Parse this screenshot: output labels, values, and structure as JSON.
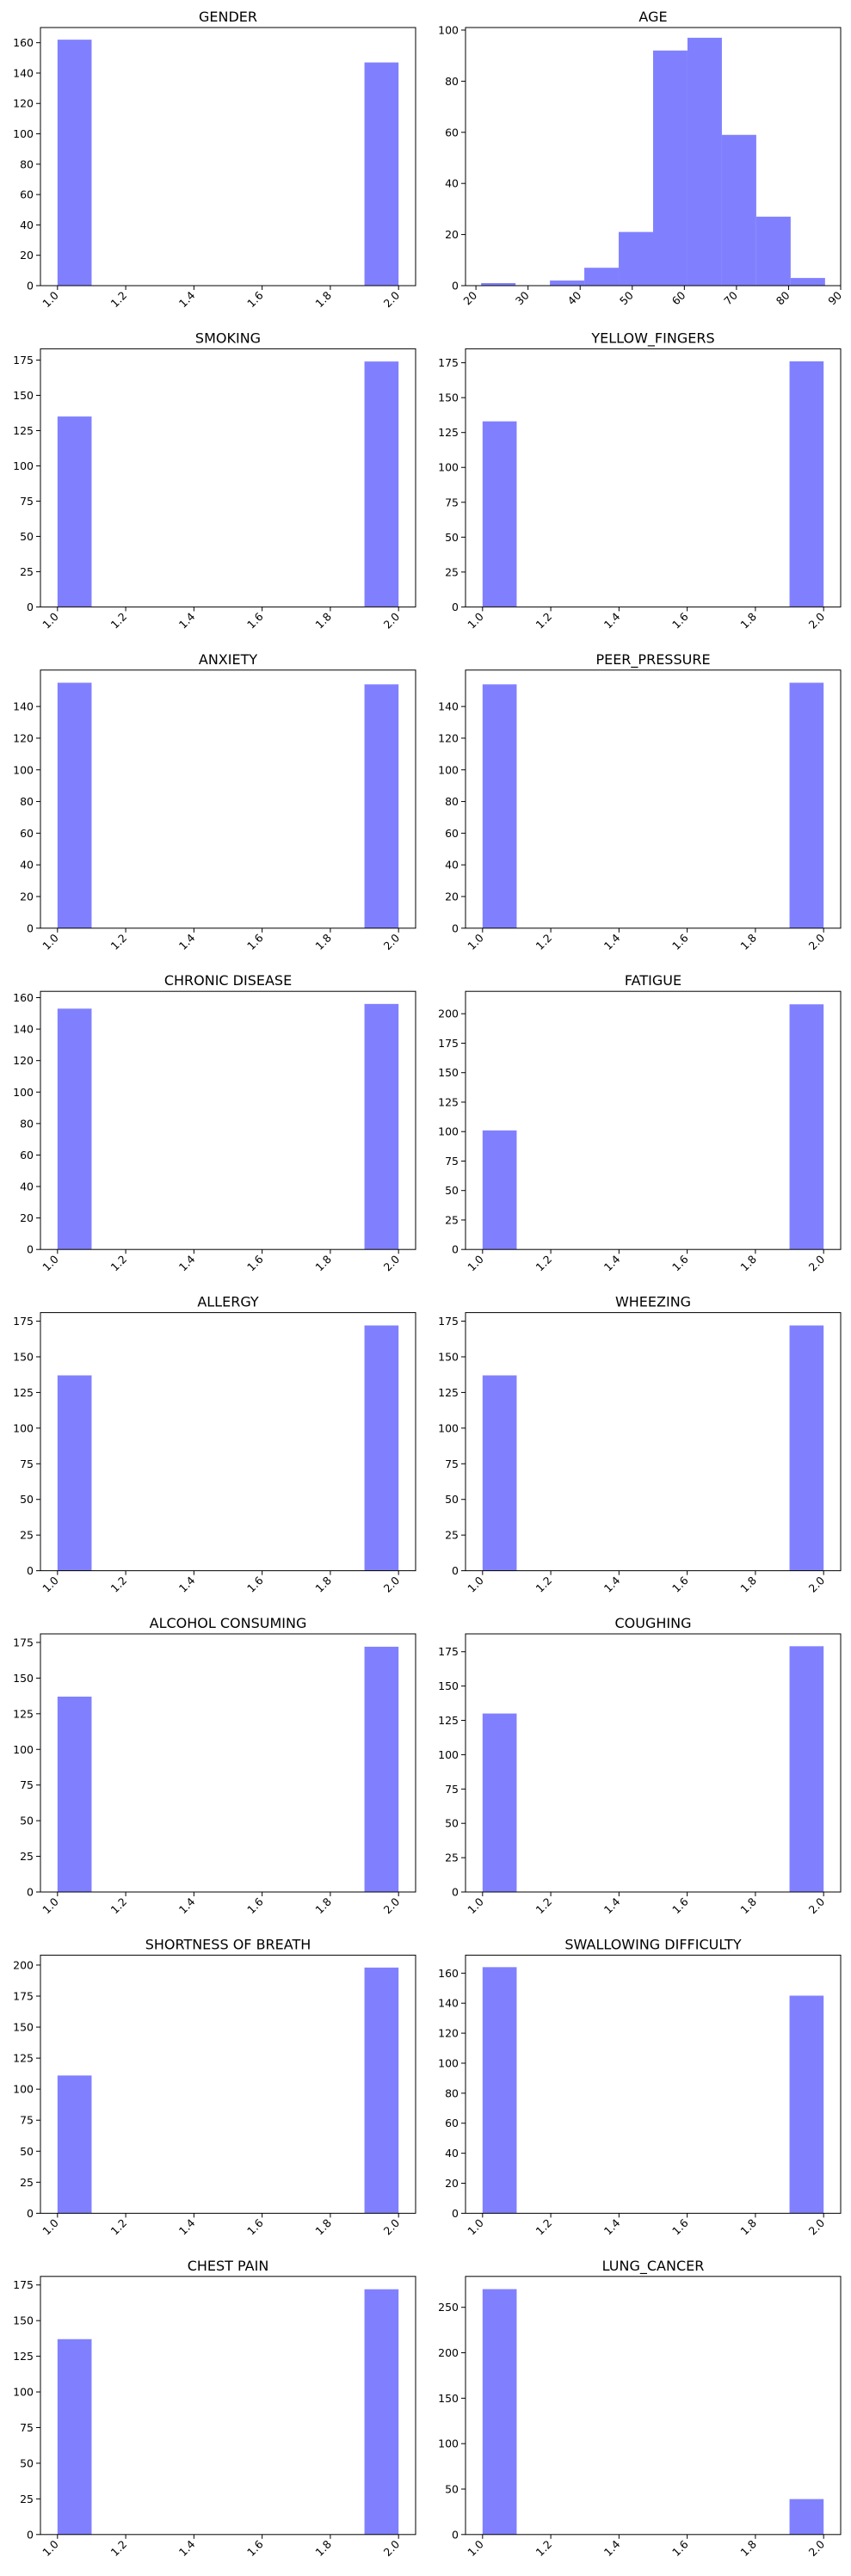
{
  "figure": {
    "background": "#ffffff",
    "bar_color": "#8080ff"
  },
  "chart_data": [
    {
      "type": "bar",
      "title": "GENDER",
      "bins": [
        [
          1.0,
          1.1,
          162
        ],
        [
          1.9,
          2.0,
          147
        ]
      ],
      "xlim": [
        0.95,
        2.05
      ],
      "ylim": [
        0,
        170
      ],
      "xticks": [
        "1.0",
        "1.2",
        "1.4",
        "1.6",
        "1.8",
        "2.0"
      ],
      "xtick_values": [
        1.0,
        1.2,
        1.4,
        1.6,
        1.8,
        2.0
      ],
      "yticks": [
        "0",
        "20",
        "40",
        "60",
        "80",
        "100",
        "120",
        "140",
        "160"
      ],
      "ytick_values": [
        0,
        20,
        40,
        60,
        80,
        100,
        120,
        140,
        160
      ]
    },
    {
      "type": "bar",
      "title": "AGE",
      "bins": [
        [
          21,
          27.6,
          1
        ],
        [
          27.6,
          34.2,
          0
        ],
        [
          34.2,
          40.8,
          2
        ],
        [
          40.8,
          47.4,
          7
        ],
        [
          47.4,
          54,
          21
        ],
        [
          54,
          60.6,
          92
        ],
        [
          60.6,
          67.2,
          97
        ],
        [
          67.2,
          73.8,
          59
        ],
        [
          73.8,
          80.4,
          27
        ],
        [
          80.4,
          87,
          3
        ]
      ],
      "xlim": [
        18,
        90
      ],
      "ylim": [
        0,
        101
      ],
      "xticks": [
        "20",
        "30",
        "40",
        "50",
        "60",
        "70",
        "80",
        "90"
      ],
      "xtick_values": [
        20,
        30,
        40,
        50,
        60,
        70,
        80,
        90
      ],
      "yticks": [
        "0",
        "20",
        "40",
        "60",
        "80",
        "100"
      ],
      "ytick_values": [
        0,
        20,
        40,
        60,
        80,
        100
      ]
    },
    {
      "type": "bar",
      "title": "SMOKING",
      "bins": [
        [
          1.0,
          1.1,
          135
        ],
        [
          1.9,
          2.0,
          174
        ]
      ],
      "xlim": [
        0.95,
        2.05
      ],
      "ylim": [
        0,
        183
      ],
      "xticks": [
        "1.0",
        "1.2",
        "1.4",
        "1.6",
        "1.8",
        "2.0"
      ],
      "xtick_values": [
        1.0,
        1.2,
        1.4,
        1.6,
        1.8,
        2.0
      ],
      "yticks": [
        "0",
        "25",
        "50",
        "75",
        "100",
        "125",
        "150",
        "175"
      ],
      "ytick_values": [
        0,
        25,
        50,
        75,
        100,
        125,
        150,
        175
      ]
    },
    {
      "type": "bar",
      "title": "YELLOW_FINGERS",
      "bins": [
        [
          1.0,
          1.1,
          133
        ],
        [
          1.9,
          2.0,
          176
        ]
      ],
      "xlim": [
        0.95,
        2.05
      ],
      "ylim": [
        0,
        185
      ],
      "xticks": [
        "1.0",
        "1.2",
        "1.4",
        "1.6",
        "1.8",
        "2.0"
      ],
      "xtick_values": [
        1.0,
        1.2,
        1.4,
        1.6,
        1.8,
        2.0
      ],
      "yticks": [
        "0",
        "25",
        "50",
        "75",
        "100",
        "125",
        "150",
        "175"
      ],
      "ytick_values": [
        0,
        25,
        50,
        75,
        100,
        125,
        150,
        175
      ]
    },
    {
      "type": "bar",
      "title": "ANXIETY",
      "bins": [
        [
          1.0,
          1.1,
          155
        ],
        [
          1.9,
          2.0,
          154
        ]
      ],
      "xlim": [
        0.95,
        2.05
      ],
      "ylim": [
        0,
        163
      ],
      "xticks": [
        "1.0",
        "1.2",
        "1.4",
        "1.6",
        "1.8",
        "2.0"
      ],
      "xtick_values": [
        1.0,
        1.2,
        1.4,
        1.6,
        1.8,
        2.0
      ],
      "yticks": [
        "0",
        "20",
        "40",
        "60",
        "80",
        "100",
        "120",
        "140"
      ],
      "ytick_values": [
        0,
        20,
        40,
        60,
        80,
        100,
        120,
        140
      ]
    },
    {
      "type": "bar",
      "title": "PEER_PRESSURE",
      "bins": [
        [
          1.0,
          1.1,
          154
        ],
        [
          1.9,
          2.0,
          155
        ]
      ],
      "xlim": [
        0.95,
        2.05
      ],
      "ylim": [
        0,
        163
      ],
      "xticks": [
        "1.0",
        "1.2",
        "1.4",
        "1.6",
        "1.8",
        "2.0"
      ],
      "xtick_values": [
        1.0,
        1.2,
        1.4,
        1.6,
        1.8,
        2.0
      ],
      "yticks": [
        "0",
        "20",
        "40",
        "60",
        "80",
        "100",
        "120",
        "140"
      ],
      "ytick_values": [
        0,
        20,
        40,
        60,
        80,
        100,
        120,
        140
      ]
    },
    {
      "type": "bar",
      "title": "CHRONIC DISEASE",
      "bins": [
        [
          1.0,
          1.1,
          153
        ],
        [
          1.9,
          2.0,
          156
        ]
      ],
      "xlim": [
        0.95,
        2.05
      ],
      "ylim": [
        0,
        164
      ],
      "xticks": [
        "1.0",
        "1.2",
        "1.4",
        "1.6",
        "1.8",
        "2.0"
      ],
      "xtick_values": [
        1.0,
        1.2,
        1.4,
        1.6,
        1.8,
        2.0
      ],
      "yticks": [
        "0",
        "20",
        "40",
        "60",
        "80",
        "100",
        "120",
        "140",
        "160"
      ],
      "ytick_values": [
        0,
        20,
        40,
        60,
        80,
        100,
        120,
        140,
        160
      ]
    },
    {
      "type": "bar",
      "title": "FATIGUE",
      "bins": [
        [
          1.0,
          1.1,
          101
        ],
        [
          1.9,
          2.0,
          208
        ]
      ],
      "xlim": [
        0.95,
        2.05
      ],
      "ylim": [
        0,
        219
      ],
      "xticks": [
        "1.0",
        "1.2",
        "1.4",
        "1.6",
        "1.8",
        "2.0"
      ],
      "xtick_values": [
        1.0,
        1.2,
        1.4,
        1.6,
        1.8,
        2.0
      ],
      "yticks": [
        "0",
        "25",
        "50",
        "75",
        "100",
        "125",
        "150",
        "175",
        "200"
      ],
      "ytick_values": [
        0,
        25,
        50,
        75,
        100,
        125,
        150,
        175,
        200
      ]
    },
    {
      "type": "bar",
      "title": "ALLERGY",
      "bins": [
        [
          1.0,
          1.1,
          137
        ],
        [
          1.9,
          2.0,
          172
        ]
      ],
      "xlim": [
        0.95,
        2.05
      ],
      "ylim": [
        0,
        181
      ],
      "xticks": [
        "1.0",
        "1.2",
        "1.4",
        "1.6",
        "1.8",
        "2.0"
      ],
      "xtick_values": [
        1.0,
        1.2,
        1.4,
        1.6,
        1.8,
        2.0
      ],
      "yticks": [
        "0",
        "25",
        "50",
        "75",
        "100",
        "125",
        "150",
        "175"
      ],
      "ytick_values": [
        0,
        25,
        50,
        75,
        100,
        125,
        150,
        175
      ]
    },
    {
      "type": "bar",
      "title": "WHEEZING",
      "bins": [
        [
          1.0,
          1.1,
          137
        ],
        [
          1.9,
          2.0,
          172
        ]
      ],
      "xlim": [
        0.95,
        2.05
      ],
      "ylim": [
        0,
        181
      ],
      "xticks": [
        "1.0",
        "1.2",
        "1.4",
        "1.6",
        "1.8",
        "2.0"
      ],
      "xtick_values": [
        1.0,
        1.2,
        1.4,
        1.6,
        1.8,
        2.0
      ],
      "yticks": [
        "0",
        "25",
        "50",
        "75",
        "100",
        "125",
        "150",
        "175"
      ],
      "ytick_values": [
        0,
        25,
        50,
        75,
        100,
        125,
        150,
        175
      ]
    },
    {
      "type": "bar",
      "title": "ALCOHOL CONSUMING",
      "bins": [
        [
          1.0,
          1.1,
          137
        ],
        [
          1.9,
          2.0,
          172
        ]
      ],
      "xlim": [
        0.95,
        2.05
      ],
      "ylim": [
        0,
        181
      ],
      "xticks": [
        "1.0",
        "1.2",
        "1.4",
        "1.6",
        "1.8",
        "2.0"
      ],
      "xtick_values": [
        1.0,
        1.2,
        1.4,
        1.6,
        1.8,
        2.0
      ],
      "yticks": [
        "0",
        "25",
        "50",
        "75",
        "100",
        "125",
        "150",
        "175"
      ],
      "ytick_values": [
        0,
        25,
        50,
        75,
        100,
        125,
        150,
        175
      ]
    },
    {
      "type": "bar",
      "title": "COUGHING",
      "bins": [
        [
          1.0,
          1.1,
          130
        ],
        [
          1.9,
          2.0,
          179
        ]
      ],
      "xlim": [
        0.95,
        2.05
      ],
      "ylim": [
        0,
        188
      ],
      "xticks": [
        "1.0",
        "1.2",
        "1.4",
        "1.6",
        "1.8",
        "2.0"
      ],
      "xtick_values": [
        1.0,
        1.2,
        1.4,
        1.6,
        1.8,
        2.0
      ],
      "yticks": [
        "0",
        "25",
        "50",
        "75",
        "100",
        "125",
        "150",
        "175"
      ],
      "ytick_values": [
        0,
        25,
        50,
        75,
        100,
        125,
        150,
        175
      ]
    },
    {
      "type": "bar",
      "title": "SHORTNESS OF BREATH",
      "bins": [
        [
          1.0,
          1.1,
          111
        ],
        [
          1.9,
          2.0,
          198
        ]
      ],
      "xlim": [
        0.95,
        2.05
      ],
      "ylim": [
        0,
        208
      ],
      "xticks": [
        "1.0",
        "1.2",
        "1.4",
        "1.6",
        "1.8",
        "2.0"
      ],
      "xtick_values": [
        1.0,
        1.2,
        1.4,
        1.6,
        1.8,
        2.0
      ],
      "yticks": [
        "0",
        "25",
        "50",
        "75",
        "100",
        "125",
        "150",
        "175",
        "200"
      ],
      "ytick_values": [
        0,
        25,
        50,
        75,
        100,
        125,
        150,
        175,
        200
      ]
    },
    {
      "type": "bar",
      "title": "SWALLOWING DIFFICULTY",
      "bins": [
        [
          1.0,
          1.1,
          164
        ],
        [
          1.9,
          2.0,
          145
        ]
      ],
      "xlim": [
        0.95,
        2.05
      ],
      "ylim": [
        0,
        172
      ],
      "xticks": [
        "1.0",
        "1.2",
        "1.4",
        "1.6",
        "1.8",
        "2.0"
      ],
      "xtick_values": [
        1.0,
        1.2,
        1.4,
        1.6,
        1.8,
        2.0
      ],
      "yticks": [
        "0",
        "20",
        "40",
        "60",
        "80",
        "100",
        "120",
        "140",
        "160"
      ],
      "ytick_values": [
        0,
        20,
        40,
        60,
        80,
        100,
        120,
        140,
        160
      ]
    },
    {
      "type": "bar",
      "title": "CHEST PAIN",
      "bins": [
        [
          1.0,
          1.1,
          137
        ],
        [
          1.9,
          2.0,
          172
        ]
      ],
      "xlim": [
        0.95,
        2.05
      ],
      "ylim": [
        0,
        181
      ],
      "xticks": [
        "1.0",
        "1.2",
        "1.4",
        "1.6",
        "1.8",
        "2.0"
      ],
      "xtick_values": [
        1.0,
        1.2,
        1.4,
        1.6,
        1.8,
        2.0
      ],
      "yticks": [
        "0",
        "25",
        "50",
        "75",
        "100",
        "125",
        "150",
        "175"
      ],
      "ytick_values": [
        0,
        25,
        50,
        75,
        100,
        125,
        150,
        175
      ]
    },
    {
      "type": "bar",
      "title": "LUNG_CANCER",
      "bins": [
        [
          1.0,
          1.1,
          270
        ],
        [
          1.9,
          2.0,
          39
        ]
      ],
      "xlim": [
        0.95,
        2.05
      ],
      "ylim": [
        0,
        284
      ],
      "xticks": [
        "1.0",
        "1.2",
        "1.4",
        "1.6",
        "1.8",
        "2.0"
      ],
      "xtick_values": [
        1.0,
        1.2,
        1.4,
        1.6,
        1.8,
        2.0
      ],
      "yticks": [
        "0",
        "50",
        "100",
        "150",
        "200",
        "250"
      ],
      "ytick_values": [
        0,
        50,
        100,
        150,
        200,
        250
      ]
    }
  ]
}
